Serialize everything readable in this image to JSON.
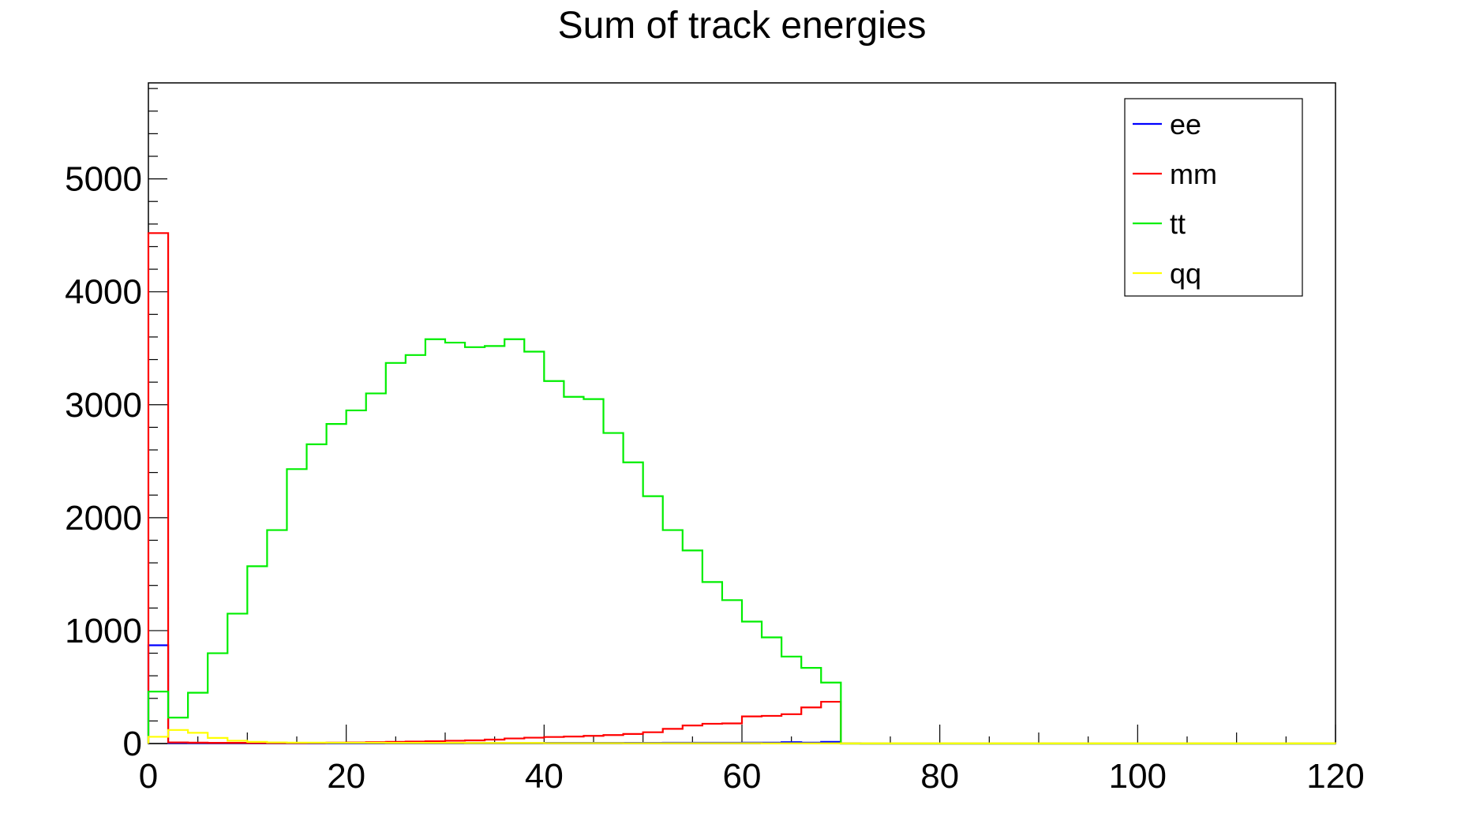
{
  "chart_data": {
    "type": "step-histogram",
    "title": "Sum of track energies",
    "xlabel": "",
    "ylabel": "",
    "xlim": [
      0,
      120
    ],
    "ylim": [
      0,
      5850
    ],
    "x_ticks": [
      0,
      20,
      40,
      60,
      80,
      100,
      120
    ],
    "y_ticks": [
      0,
      1000,
      2000,
      3000,
      4000,
      5000
    ],
    "grid": false,
    "legend_position": "top-right",
    "bin_width": 2,
    "bin_edges_start": 0,
    "series": [
      {
        "name": "ee",
        "color": "#0000ff",
        "values": [
          870,
          5,
          4,
          3,
          3,
          3,
          3,
          3,
          3,
          3,
          3,
          5,
          5,
          4,
          4,
          5,
          5,
          5,
          5,
          5,
          6,
          6,
          6,
          6,
          6,
          6,
          7,
          7,
          7,
          7,
          8,
          8,
          12,
          8,
          15,
          3,
          0,
          0,
          0,
          0,
          0,
          0,
          0,
          0,
          0,
          0,
          0,
          0,
          0,
          0,
          0,
          0,
          0,
          0,
          0,
          0,
          0,
          0,
          0,
          0
        ]
      },
      {
        "name": "mm",
        "color": "#ff0000",
        "values": [
          4520,
          10,
          8,
          6,
          6,
          5,
          5,
          5,
          6,
          8,
          10,
          12,
          15,
          18,
          20,
          25,
          28,
          35,
          45,
          52,
          58,
          62,
          68,
          75,
          85,
          100,
          130,
          160,
          175,
          178,
          240,
          245,
          260,
          320,
          370,
          0,
          0,
          0,
          0,
          0,
          0,
          0,
          0,
          0,
          0,
          0,
          0,
          0,
          0,
          0,
          0,
          0,
          0,
          0,
          0,
          0,
          0,
          0,
          0,
          0
        ]
      },
      {
        "name": "tt",
        "color": "#00ee00",
        "values": [
          460,
          230,
          450,
          800,
          1150,
          1570,
          1890,
          2430,
          2650,
          2830,
          2950,
          3100,
          3370,
          3440,
          3580,
          3550,
          3510,
          3520,
          3580,
          3470,
          3210,
          3070,
          3050,
          2750,
          2490,
          2190,
          1890,
          1710,
          1430,
          1270,
          1080,
          940,
          770,
          670,
          540,
          0,
          0,
          0,
          0,
          0,
          0,
          0,
          0,
          0,
          0,
          0,
          0,
          0,
          0,
          0,
          0,
          0,
          0,
          0,
          0,
          0,
          0,
          0,
          0,
          0
        ]
      },
      {
        "name": "qq",
        "color": "#ffff00",
        "values": [
          60,
          120,
          95,
          50,
          25,
          15,
          10,
          8,
          8,
          7,
          7,
          7,
          6,
          6,
          6,
          6,
          5,
          5,
          5,
          5,
          4,
          4,
          4,
          4,
          3,
          3,
          3,
          3,
          3,
          3,
          3,
          2,
          2,
          2,
          2,
          2,
          2,
          2,
          2,
          2,
          2,
          2,
          2,
          2,
          2,
          2,
          2,
          2,
          2,
          2,
          2,
          2,
          2,
          2,
          2,
          2,
          2,
          2,
          2,
          2
        ]
      }
    ]
  }
}
